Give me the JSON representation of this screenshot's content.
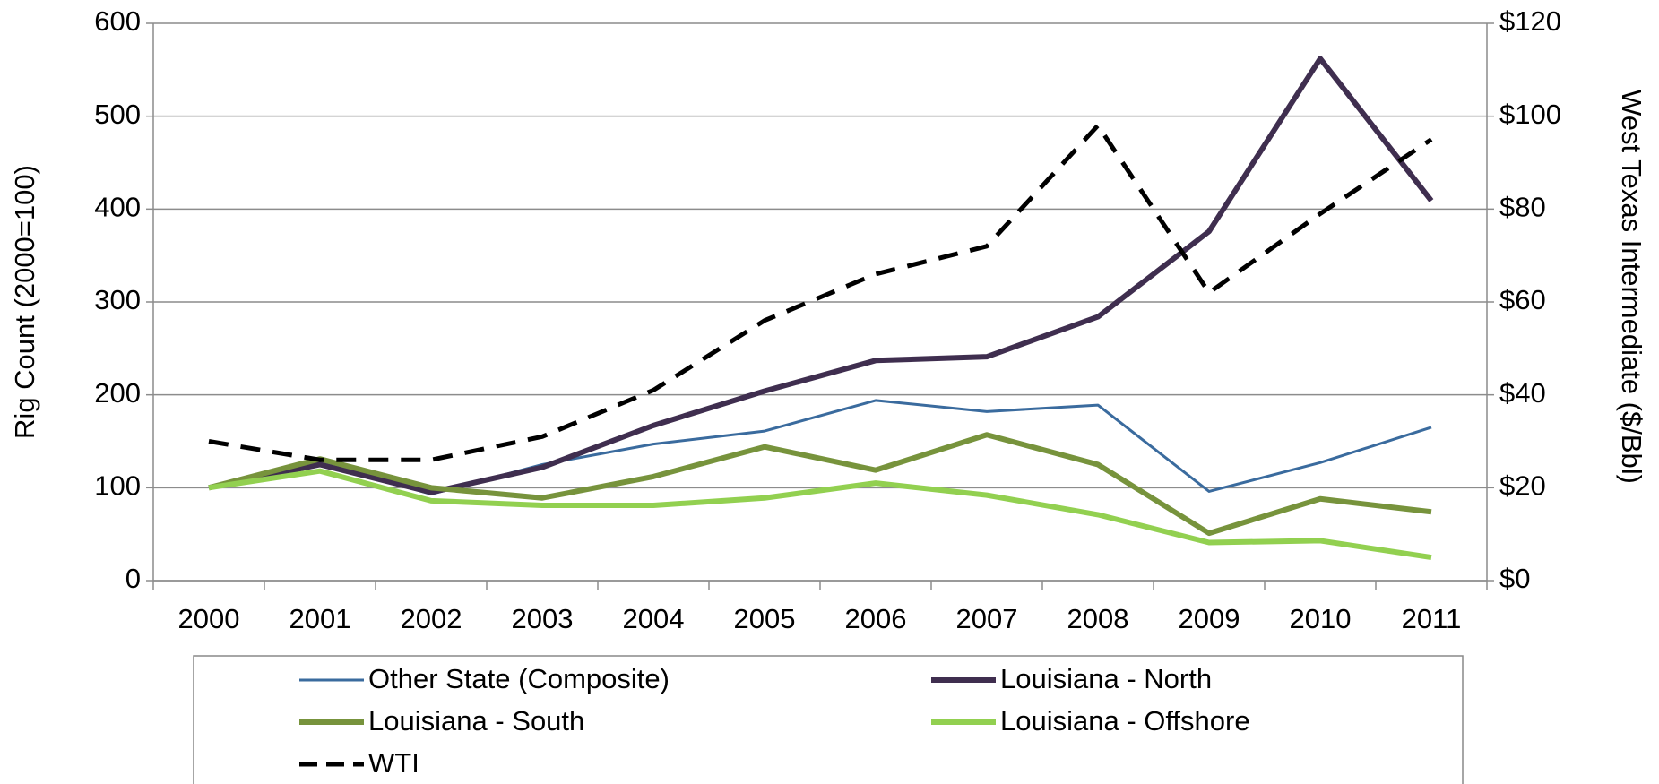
{
  "chart_data": {
    "type": "line",
    "categories": [
      "2000",
      "2001",
      "2002",
      "2003",
      "2004",
      "2005",
      "2006",
      "2007",
      "2008",
      "2009",
      "2010",
      "2011"
    ],
    "y_label": "Rig Count (2000=100)",
    "y2_label": "West Texas Intermediate ($/Bbl)",
    "ylim": [
      0,
      600
    ],
    "yticks": [
      0,
      100,
      200,
      300,
      400,
      500,
      600
    ],
    "y2lim": [
      0,
      120
    ],
    "y2ticks": [
      {
        "value": 0,
        "label": "$0"
      },
      {
        "value": 20,
        "label": "$20"
      },
      {
        "value": 40,
        "label": "$40"
      },
      {
        "value": 60,
        "label": "$60"
      },
      {
        "value": 80,
        "label": "$80"
      },
      {
        "value": 100,
        "label": "$100"
      },
      {
        "value": 120,
        "label": "$120"
      }
    ],
    "grid": true,
    "legend": "bottom",
    "series": [
      {
        "name": "Other State (Composite)",
        "color": "#3a6b9e",
        "values": [
          100,
          128,
          93,
          125,
          147,
          161,
          194,
          182,
          189,
          96,
          127,
          165
        ]
      },
      {
        "name": "Louisiana - North",
        "color": "#3f2e4f",
        "values": [
          100,
          125,
          95,
          122,
          167,
          204,
          237,
          241,
          284,
          376,
          562,
          409
        ]
      },
      {
        "name": "Louisiana - South",
        "color": "#77933c",
        "values": [
          100,
          131,
          100,
          89,
          112,
          144,
          119,
          157,
          125,
          51,
          88,
          74
        ]
      },
      {
        "name": "Louisiana - Offshore",
        "color": "#92d050",
        "values": [
          100,
          118,
          86,
          81,
          81,
          89,
          105,
          92,
          71,
          41,
          43,
          25
        ]
      },
      {
        "name": "WTI",
        "color": "#000000",
        "line_style": "dashed",
        "axis": "y2",
        "values": [
          30,
          26,
          26,
          31,
          41,
          56,
          66,
          72,
          98,
          62,
          79,
          95
        ]
      }
    ]
  }
}
